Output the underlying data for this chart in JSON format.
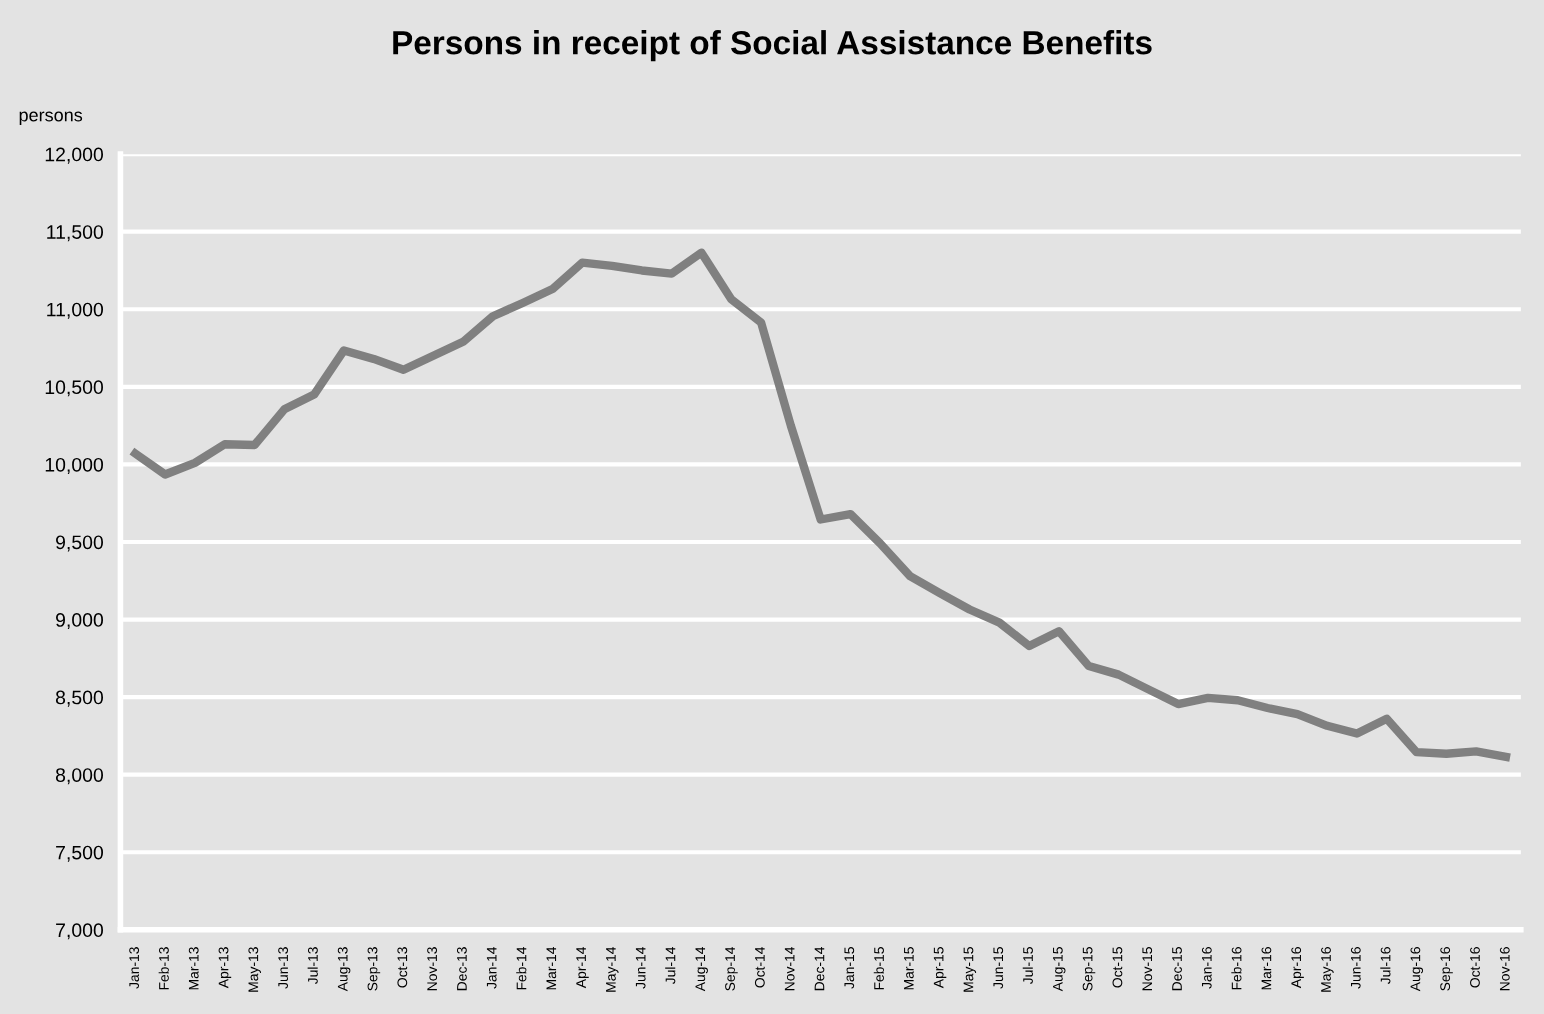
{
  "chart_data": {
    "type": "line",
    "title": "Persons in receipt of Social Assistance Benefits",
    "ylabel": "persons",
    "categories": [
      "Jan-13",
      "Feb-13",
      "Mar-13",
      "Apr-13",
      "May-13",
      "Jun-13",
      "Jul-13",
      "Aug-13",
      "Sep-13",
      "Oct-13",
      "Nov-13",
      "Dec-13",
      "Jan-14",
      "Feb-14",
      "Mar-14",
      "Apr-14",
      "May-14",
      "Jun-14",
      "Jul-14",
      "Aug-14",
      "Sep-14",
      "Oct-14",
      "Nov-14",
      "Dec-14",
      "Jan-15",
      "Feb-15",
      "Mar-15",
      "Apr-15",
      "May-15",
      "Jun-15",
      "Jul-15",
      "Aug-15",
      "Sep-15",
      "Oct-15",
      "Nov-15",
      "Dec-15",
      "Jan-16",
      "Feb-16",
      "Mar-16",
      "Apr-16",
      "May-16",
      "Jun-16",
      "Jul-16",
      "Aug-16",
      "Sep-16",
      "Oct-16",
      "Nov-16"
    ],
    "series": [
      {
        "color": "#808080",
        "values": [
          10070,
          9935,
          10010,
          10130,
          10125,
          10355,
          10450,
          10735,
          10680,
          10610,
          10700,
          10790,
          10955,
          11040,
          11130,
          11300,
          11280,
          11250,
          11230,
          11365,
          11065,
          10915,
          10250,
          9645,
          9680,
          9490,
          9280,
          9170,
          9065,
          8980,
          8830,
          8925,
          8700,
          8645,
          8550,
          8455,
          8495,
          8480,
          8430,
          8390,
          8315,
          8265,
          8360,
          8145,
          8135,
          8150,
          8115
        ]
      }
    ],
    "ylim": [
      7000,
      12000
    ],
    "yticks": [
      {
        "value": 7000,
        "label": "7,000"
      },
      {
        "value": 7500,
        "label": "7,500"
      },
      {
        "value": 8000,
        "label": "8,000"
      },
      {
        "value": 8500,
        "label": "8,500"
      },
      {
        "value": 9000,
        "label": "9,000"
      },
      {
        "value": 9500,
        "label": "9,500"
      },
      {
        "value": 10000,
        "label": "10,000"
      },
      {
        "value": 10500,
        "label": "10,500"
      },
      {
        "value": 11000,
        "label": "11,000"
      },
      {
        "value": 11500,
        "label": "11,500"
      },
      {
        "value": 12000,
        "label": "12,000"
      }
    ],
    "grid": "y",
    "marker": "none",
    "line_style": "solid",
    "legend": false
  }
}
